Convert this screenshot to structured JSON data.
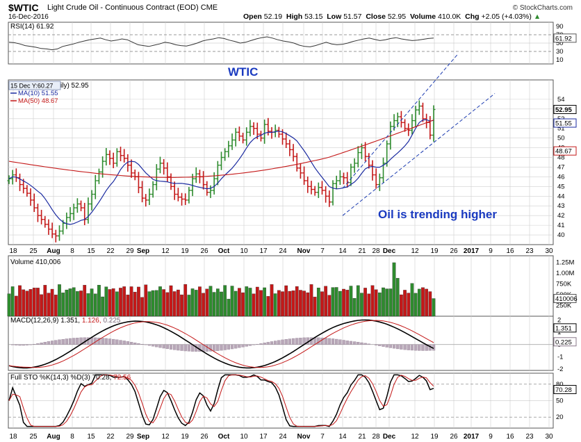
{
  "header": {
    "symbol": "$WTIC",
    "name": "Light Crude Oil - Continuous Contract (EOD) CME",
    "date": "16-Dec-2016",
    "credit": "© StockCharts.com",
    "quote": {
      "open_label": "Open",
      "open": "52.19",
      "high_label": "High",
      "high": "53.15",
      "low_label": "Low",
      "low": "51.57",
      "close_label": "Close",
      "close": "52.95",
      "volume_label": "Volume",
      "volume": "410.0K",
      "chg_label": "Chg",
      "chg": "+2.05 (+4.03%)",
      "chg_dir": "▲"
    }
  },
  "colors": {
    "up": "#2e8b2e",
    "down": "#c41818",
    "ma10": "#1a2aa0",
    "ma50": "#c41818",
    "price_line": "#1a3ab0",
    "annotation": "#1a3ac0",
    "grid": "#cfcfcf",
    "panel_border": "#555555"
  },
  "annotations": {
    "title": "WTIC",
    "trend": "Oil is trending higher",
    "cursor": "15 Dec Y:60.27"
  },
  "legend": {
    "price": "ily) 52.95",
    "ma10": "MA(10) 51.55",
    "ma50": "MA(50) 48.67",
    "volume": "Volume 410,006",
    "rsi": "RSI(14) 61.92",
    "macd": {
      "label": "MACD(12,26,9)",
      "v1": "1.351",
      "v2": "1.126",
      "v3": "0.225"
    },
    "sto": {
      "label": "Full STO %K(14,3) %D(3)",
      "v1": "70.28",
      "v2": "72.56"
    }
  },
  "x_axis": {
    "labels": [
      "18",
      "25",
      "Aug",
      "8",
      "15",
      "22",
      "29",
      "Sep",
      "12",
      "19",
      "26",
      "Oct",
      "10",
      "17",
      "24",
      "Nov",
      "7",
      "14",
      "21",
      "28",
      "Dec",
      "12",
      "19",
      "26",
      "2017",
      "9",
      "16",
      "23",
      "30"
    ],
    "bold": [
      "Aug",
      "Sep",
      "Oct",
      "Nov",
      "Dec",
      "2017"
    ]
  },
  "chart_data": {
    "type": "candlestick",
    "title": "$WTIC Light Crude Oil - Continuous Contract (EOD) CME",
    "period": "Jul 2016 - Dec 16 2016 (daily)",
    "price": {
      "ylim": [
        39,
        56
      ],
      "ticks": [
        40,
        41,
        42,
        43,
        44,
        45,
        46,
        47,
        48,
        49,
        50,
        51,
        52,
        53,
        54
      ],
      "last": 52.95,
      "ma10_last": 51.55,
      "ma50_last": 48.67,
      "closes": [
        45.8,
        46.2,
        45.9,
        45.2,
        44.8,
        44.3,
        43.6,
        42.8,
        42.0,
        41.6,
        41.1,
        40.6,
        40.1,
        39.9,
        40.4,
        41.2,
        41.8,
        42.2,
        42.8,
        43.2,
        42.8,
        41.6,
        43.2,
        44.2,
        45.6,
        46.5,
        47.6,
        48.3,
        47.9,
        47.4,
        48.6,
        48.2,
        47.9,
        47.2,
        46.4,
        46.0,
        44.9,
        43.8,
        43.6,
        44.2,
        45.2,
        46.8,
        47.4,
        46.9,
        46.0,
        45.0,
        44.2,
        43.9,
        43.7,
        43.6,
        44.6,
        45.8,
        46.3,
        46.0,
        45.2,
        44.4,
        44.6,
        45.8,
        47.2,
        48.0,
        48.6,
        49.2,
        49.8,
        50.6,
        50.2,
        49.8,
        50.6,
        51.2,
        51.0,
        50.4,
        50.0,
        51.4,
        50.7,
        50.6,
        50.8,
        50.4,
        49.9,
        49.4,
        48.8,
        48.1,
        46.9,
        46.4,
        45.6,
        45.0,
        44.7,
        44.4,
        44.9,
        44.6,
        44.0,
        43.4,
        45.3,
        45.6,
        46.0,
        45.9,
        45.4,
        47.0,
        47.4,
        48.5,
        49.0,
        48.1,
        47.2,
        46.2,
        45.2,
        45.9,
        47.4,
        49.4,
        51.2,
        51.8,
        52.2,
        51.6,
        51.0,
        50.8,
        51.8,
        52.9,
        53.3,
        52.0,
        51.6,
        50.3,
        52.95
      ]
    },
    "channel": {
      "upper": [
        {
          "date": "Nov 14",
          "y": 44.8
        },
        {
          "date": "Dec 30",
          "y": 58.6
        }
      ],
      "lower": [
        {
          "date": "Nov 14",
          "y": 42.0
        },
        {
          "date": "Jan 6 2017",
          "y": 54.6
        }
      ]
    },
    "rsi": {
      "name": "RSI(14)",
      "last": 61.92,
      "ylim": [
        0,
        100
      ],
      "ticks": [
        10,
        30,
        50,
        70,
        90
      ],
      "levels": [
        30,
        70
      ],
      "values": [
        52,
        51,
        48,
        44,
        42,
        40,
        37,
        36,
        34,
        36,
        42,
        45,
        48,
        52,
        55,
        58,
        60,
        62,
        58,
        55,
        57,
        60,
        58,
        52,
        46,
        44,
        42,
        45,
        48,
        52,
        50,
        46,
        44,
        43,
        46,
        50,
        55,
        58,
        60,
        63,
        61,
        57,
        54,
        50,
        52,
        56,
        60,
        63,
        65,
        62,
        58,
        55,
        53,
        50,
        45,
        42,
        41,
        44,
        48,
        52,
        48,
        46,
        47,
        50,
        54,
        57,
        60,
        62,
        59,
        56,
        58,
        61,
        63,
        60,
        58,
        56,
        57,
        59,
        61,
        62
      ]
    },
    "volume": {
      "name": "Volume",
      "last": 410006,
      "ylim": [
        0,
        1400000
      ],
      "ticks": [
        "250K",
        "500K",
        "750K",
        "1.00M",
        "1.25M"
      ]
    },
    "macd": {
      "name": "MACD(12,26,9)",
      "macd": 1.351,
      "signal": 1.126,
      "histogram": 0.225,
      "ylim": [
        -2.1,
        2.3
      ],
      "ticks": [
        -2,
        -1,
        0,
        1,
        2
      ]
    },
    "stochastic": {
      "name": "Full STO %K(14,3) %D(3)",
      "k": 70.28,
      "d": 72.56,
      "ylim": [
        0,
        100
      ],
      "ticks": [
        20,
        50,
        80
      ],
      "levels": [
        20,
        80
      ]
    }
  }
}
